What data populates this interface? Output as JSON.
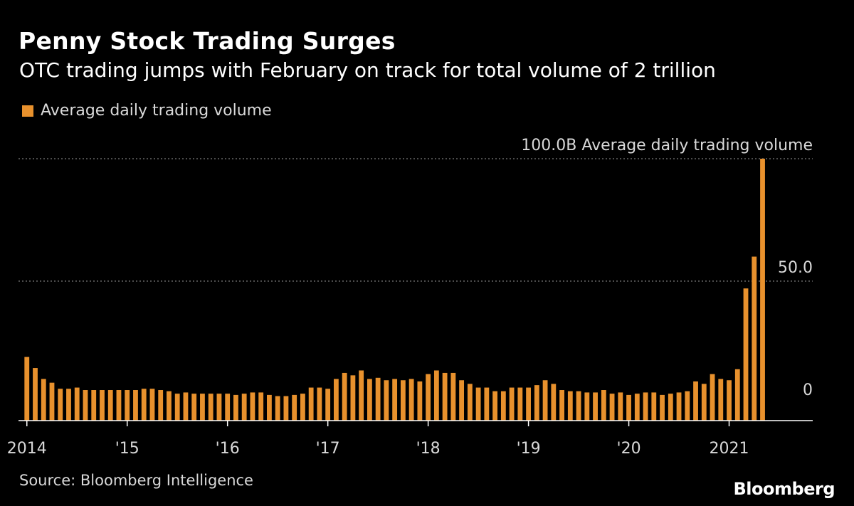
{
  "header": {
    "title": "Penny Stock Trading Surges",
    "subtitle": "OTC trading jumps with February on track for total volume of 2 trillion"
  },
  "legend": {
    "label": "Average daily trading volume"
  },
  "footer": {
    "source": "Source: Bloomberg Intelligence",
    "brand": "Bloomberg"
  },
  "colors": {
    "bar": "#e8912d",
    "background": "#000000",
    "grid": "#9a9a9a",
    "axis": "#ffffff",
    "text": "#d9d9d9"
  },
  "chart_data": {
    "type": "bar",
    "series": [
      {
        "name": "Average daily trading volume",
        "start": "2014-01",
        "interval": "month",
        "values": [
          19,
          14.5,
          10,
          8.5,
          6,
          6,
          6.5,
          5.5,
          5.5,
          5.5,
          5.5,
          5.5,
          5.5,
          5.5,
          6,
          6,
          5.5,
          5,
          4,
          4.5,
          4,
          4,
          4,
          4,
          4,
          3.5,
          4,
          4.5,
          4.5,
          3.5,
          3,
          3,
          3.5,
          4,
          6.5,
          6.5,
          6,
          10,
          12.5,
          11.5,
          13.5,
          10,
          10.5,
          9.5,
          10,
          9.5,
          10,
          9,
          12,
          13.5,
          12.5,
          12.5,
          9.5,
          8,
          6.5,
          6.5,
          5,
          5,
          6.5,
          6.5,
          6.5,
          7.5,
          9.5,
          8,
          5.5,
          5,
          5,
          4.5,
          4.5,
          5.5,
          4,
          4.5,
          3.5,
          4,
          4.5,
          4.5,
          3.5,
          4,
          4.5,
          5,
          9,
          8,
          12,
          10,
          9.5,
          14,
          47,
          60,
          100
        ]
      }
    ],
    "x_tick_labels": [
      {
        "date": "2014-01",
        "label": "2014"
      },
      {
        "date": "2015-01",
        "label": "'15"
      },
      {
        "date": "2016-01",
        "label": "'16"
      },
      {
        "date": "2017-01",
        "label": "'17"
      },
      {
        "date": "2018-01",
        "label": "'18"
      },
      {
        "date": "2019-01",
        "label": "'19"
      },
      {
        "date": "2020-01",
        "label": "'20"
      },
      {
        "date": "2021-01",
        "label": "2021"
      }
    ],
    "x_range": [
      "2013-12",
      "2021-11"
    ],
    "y_ticks": [
      {
        "value": 0,
        "label": "0"
      },
      {
        "value": 50,
        "label": "50.0"
      },
      {
        "value": 100,
        "label": "100.0B Average daily trading volume"
      }
    ],
    "ylim": [
      -7,
      100
    ],
    "grid": true,
    "legend_position": "top-left"
  }
}
